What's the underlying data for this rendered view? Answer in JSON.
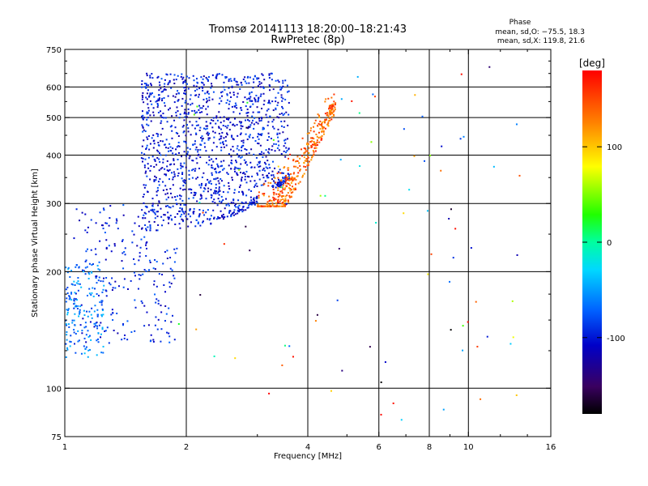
{
  "chart_data": {
    "type": "scatter",
    "title": "Tromsø 20141113 18:20:00–18:21:43",
    "subtitle": "RwPretec (8p)",
    "xlabel": "Frequency [MHz]",
    "ylabel": "Stationary phase Virtual Height [km]",
    "xscale": "log2",
    "yscale": "log",
    "xlim": [
      1,
      16
    ],
    "ylim": [
      75,
      750
    ],
    "xticks": [
      1,
      2,
      4,
      6,
      8,
      10,
      16
    ],
    "xtick_labels": [
      "1",
      "2",
      "4",
      "6",
      "8",
      "10",
      "16"
    ],
    "xgrid": [
      2,
      4,
      6,
      8,
      10
    ],
    "yticks": [
      75,
      100,
      200,
      300,
      400,
      500,
      600,
      750
    ],
    "ytick_labels": [
      "75",
      "100",
      "200",
      "300",
      "400",
      "500",
      "600",
      "750"
    ],
    "ygrid": [
      100,
      200,
      300,
      400,
      500,
      600
    ],
    "stats": {
      "heading": "Phase",
      "line_o": "mean, sd,O: −75.5, 18.3",
      "line_x": "mean, sd,X: 119.8, 21.6"
    },
    "colorbar": {
      "label": "[deg]",
      "range": [
        -180,
        180
      ],
      "ticks": [
        100,
        0,
        -100
      ],
      "tick_labels": [
        "100",
        "0",
        "-100"
      ]
    },
    "clusters": [
      {
        "name": "lower-blue-trace",
        "f": [
          1.05,
          1.9
        ],
        "h": [
          130,
          300
        ],
        "phase": -95
      },
      {
        "name": "main-blue-echoes",
        "f": [
          1.55,
          3.6
        ],
        "h": [
          255,
          650
        ],
        "phase": -100
      },
      {
        "name": "cyan-low-f",
        "f": [
          1.0,
          1.25
        ],
        "h": [
          120,
          210
        ],
        "phase": -60
      },
      {
        "name": "orange-x-trace",
        "f": [
          3.0,
          4.7
        ],
        "h": [
          295,
          580
        ],
        "phase": 140
      },
      {
        "name": "sparse-noise",
        "f": [
          1.9,
          14
        ],
        "h": [
          80,
          680
        ],
        "phase": 0
      }
    ]
  }
}
